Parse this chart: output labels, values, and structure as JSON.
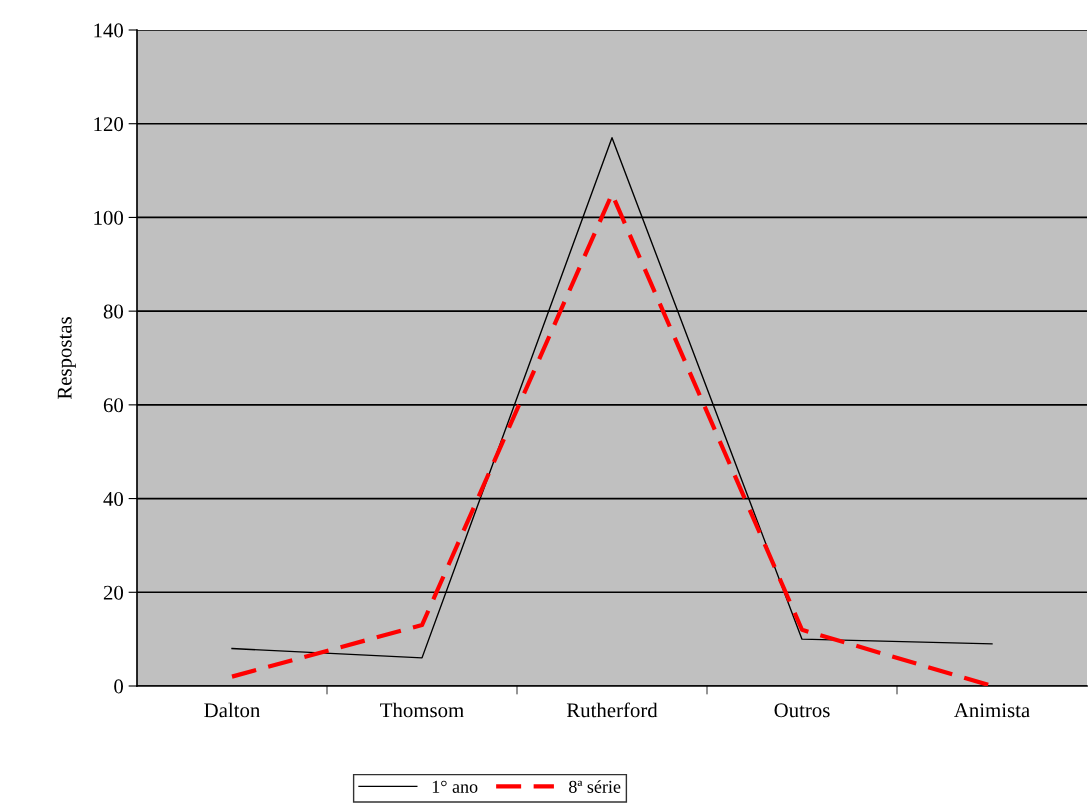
{
  "chart_data": {
    "type": "line",
    "ylabel": "Respostas",
    "categories": [
      "Dalton",
      "Thomsom",
      "Rutherford",
      "Outros",
      "Animista"
    ],
    "series": [
      {
        "name": "1° ano",
        "color": "#000000",
        "line_style": "solid",
        "values": [
          8,
          6,
          117,
          10,
          9
        ]
      },
      {
        "name": "8ª série",
        "color": "#ff0000",
        "line_style": "dashed",
        "values": [
          2,
          13,
          105,
          12,
          0
        ]
      }
    ],
    "ylim": [
      0,
      140
    ],
    "yticks": [
      0,
      20,
      40,
      60,
      80,
      100,
      120,
      140
    ],
    "grid": "y",
    "legend": "bottom"
  }
}
